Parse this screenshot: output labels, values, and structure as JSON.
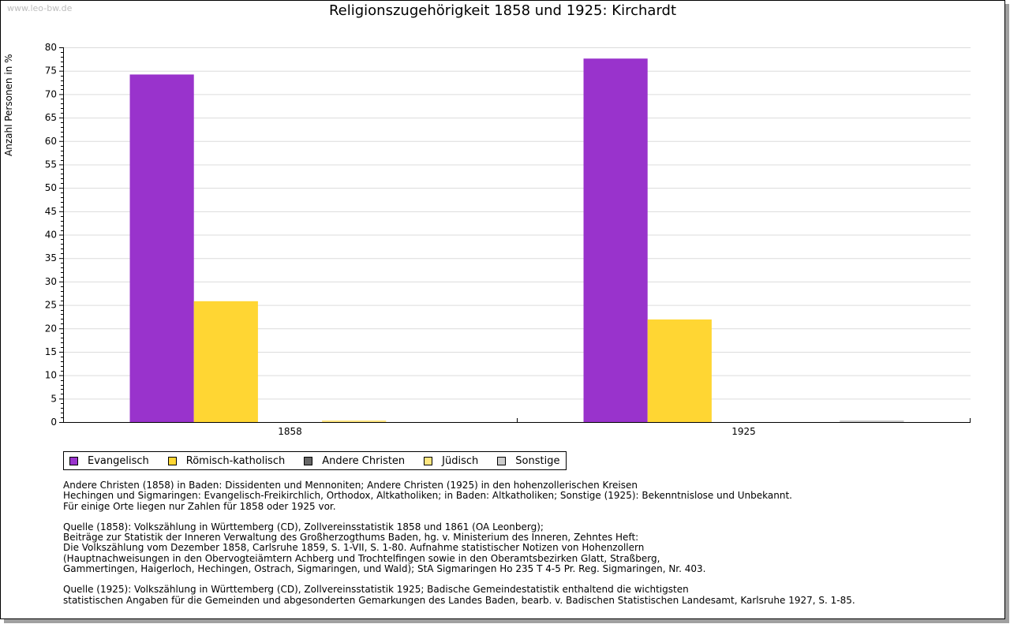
{
  "watermark": "www.leo-bw.de",
  "chart_data": {
    "type": "bar",
    "title": "Religionszugehörigkeit 1858 und 1925: Kirchardt",
    "xlabel": "",
    "ylabel": "Anzahl Personen in %",
    "ylim": [
      0,
      80
    ],
    "ytick_step": 5,
    "yticks": [
      "0",
      "5",
      "10",
      "15",
      "20",
      "25",
      "30",
      "35",
      "40",
      "45",
      "50",
      "55",
      "60",
      "65",
      "70",
      "75",
      "80"
    ],
    "grid": true,
    "legend_position": "bottom-left",
    "categories": [
      "1858",
      "1925"
    ],
    "series": [
      {
        "name": "Evangelisch",
        "color": "#9933cc",
        "values": [
          74.2,
          77.6
        ]
      },
      {
        "name": "Römisch-katholisch",
        "color": "#ffd633",
        "values": [
          25.8,
          21.9
        ]
      },
      {
        "name": "Andere Christen",
        "color": "#666666",
        "values": [
          0,
          0
        ]
      },
      {
        "name": "Jüdisch",
        "color": "#ffe680",
        "values": [
          0.2,
          0
        ]
      },
      {
        "name": "Sonstige",
        "color": "#cccccc",
        "values": [
          0,
          0.3
        ]
      }
    ]
  },
  "notes": [
    [
      "Andere Christen (1858) in Baden: Dissidenten und Mennoniten; Andere Christen (1925) in den hohenzollerischen Kreisen",
      "Hechingen und Sigmaringen: Evangelisch-Freikirchlich, Orthodox, Altkatholiken; in Baden: Altkatholiken; Sonstige (1925): Bekenntnislose und Unbekannt.",
      "Für einige Orte liegen nur Zahlen für 1858 oder 1925 vor."
    ],
    [
      "Quelle (1858): Volkszählung in Württemberg (CD), Zollvereinsstatistik 1858 und 1861 (OA Leonberg);",
      "Beiträge zur Statistik der Inneren Verwaltung des Großherzogthums Baden, hg. v. Ministerium des Inneren, Zehntes Heft:",
      "Die Volkszählung vom Dezember 1858, Carlsruhe 1859, S. 1-VII, S. 1-80. Aufnahme statistischer Notizen von Hohenzollern",
      "(Hauptnachweisungen in den Obervogteiämtern Achberg und Trochtelfingen sowie in den Oberamtsbezirken Glatt, Straßberg,",
      "Gammertingen, Haigerloch, Hechingen, Ostrach, Sigmaringen, und Wald); StA Sigmaringen Ho 235 T 4-5 Pr. Reg. Sigmaringen, Nr. 403."
    ],
    [
      "Quelle (1925): Volkszählung in Württemberg (CD), Zollvereinsstatistik 1925; Badische Gemeindestatistik enthaltend die wichtigsten",
      "statistischen Angaben für die Gemeinden und abgesonderten Gemarkungen des Landes Baden, bearb. v. Badischen Statistischen Landesamt, Karlsruhe 1927, S. 1-85."
    ]
  ]
}
